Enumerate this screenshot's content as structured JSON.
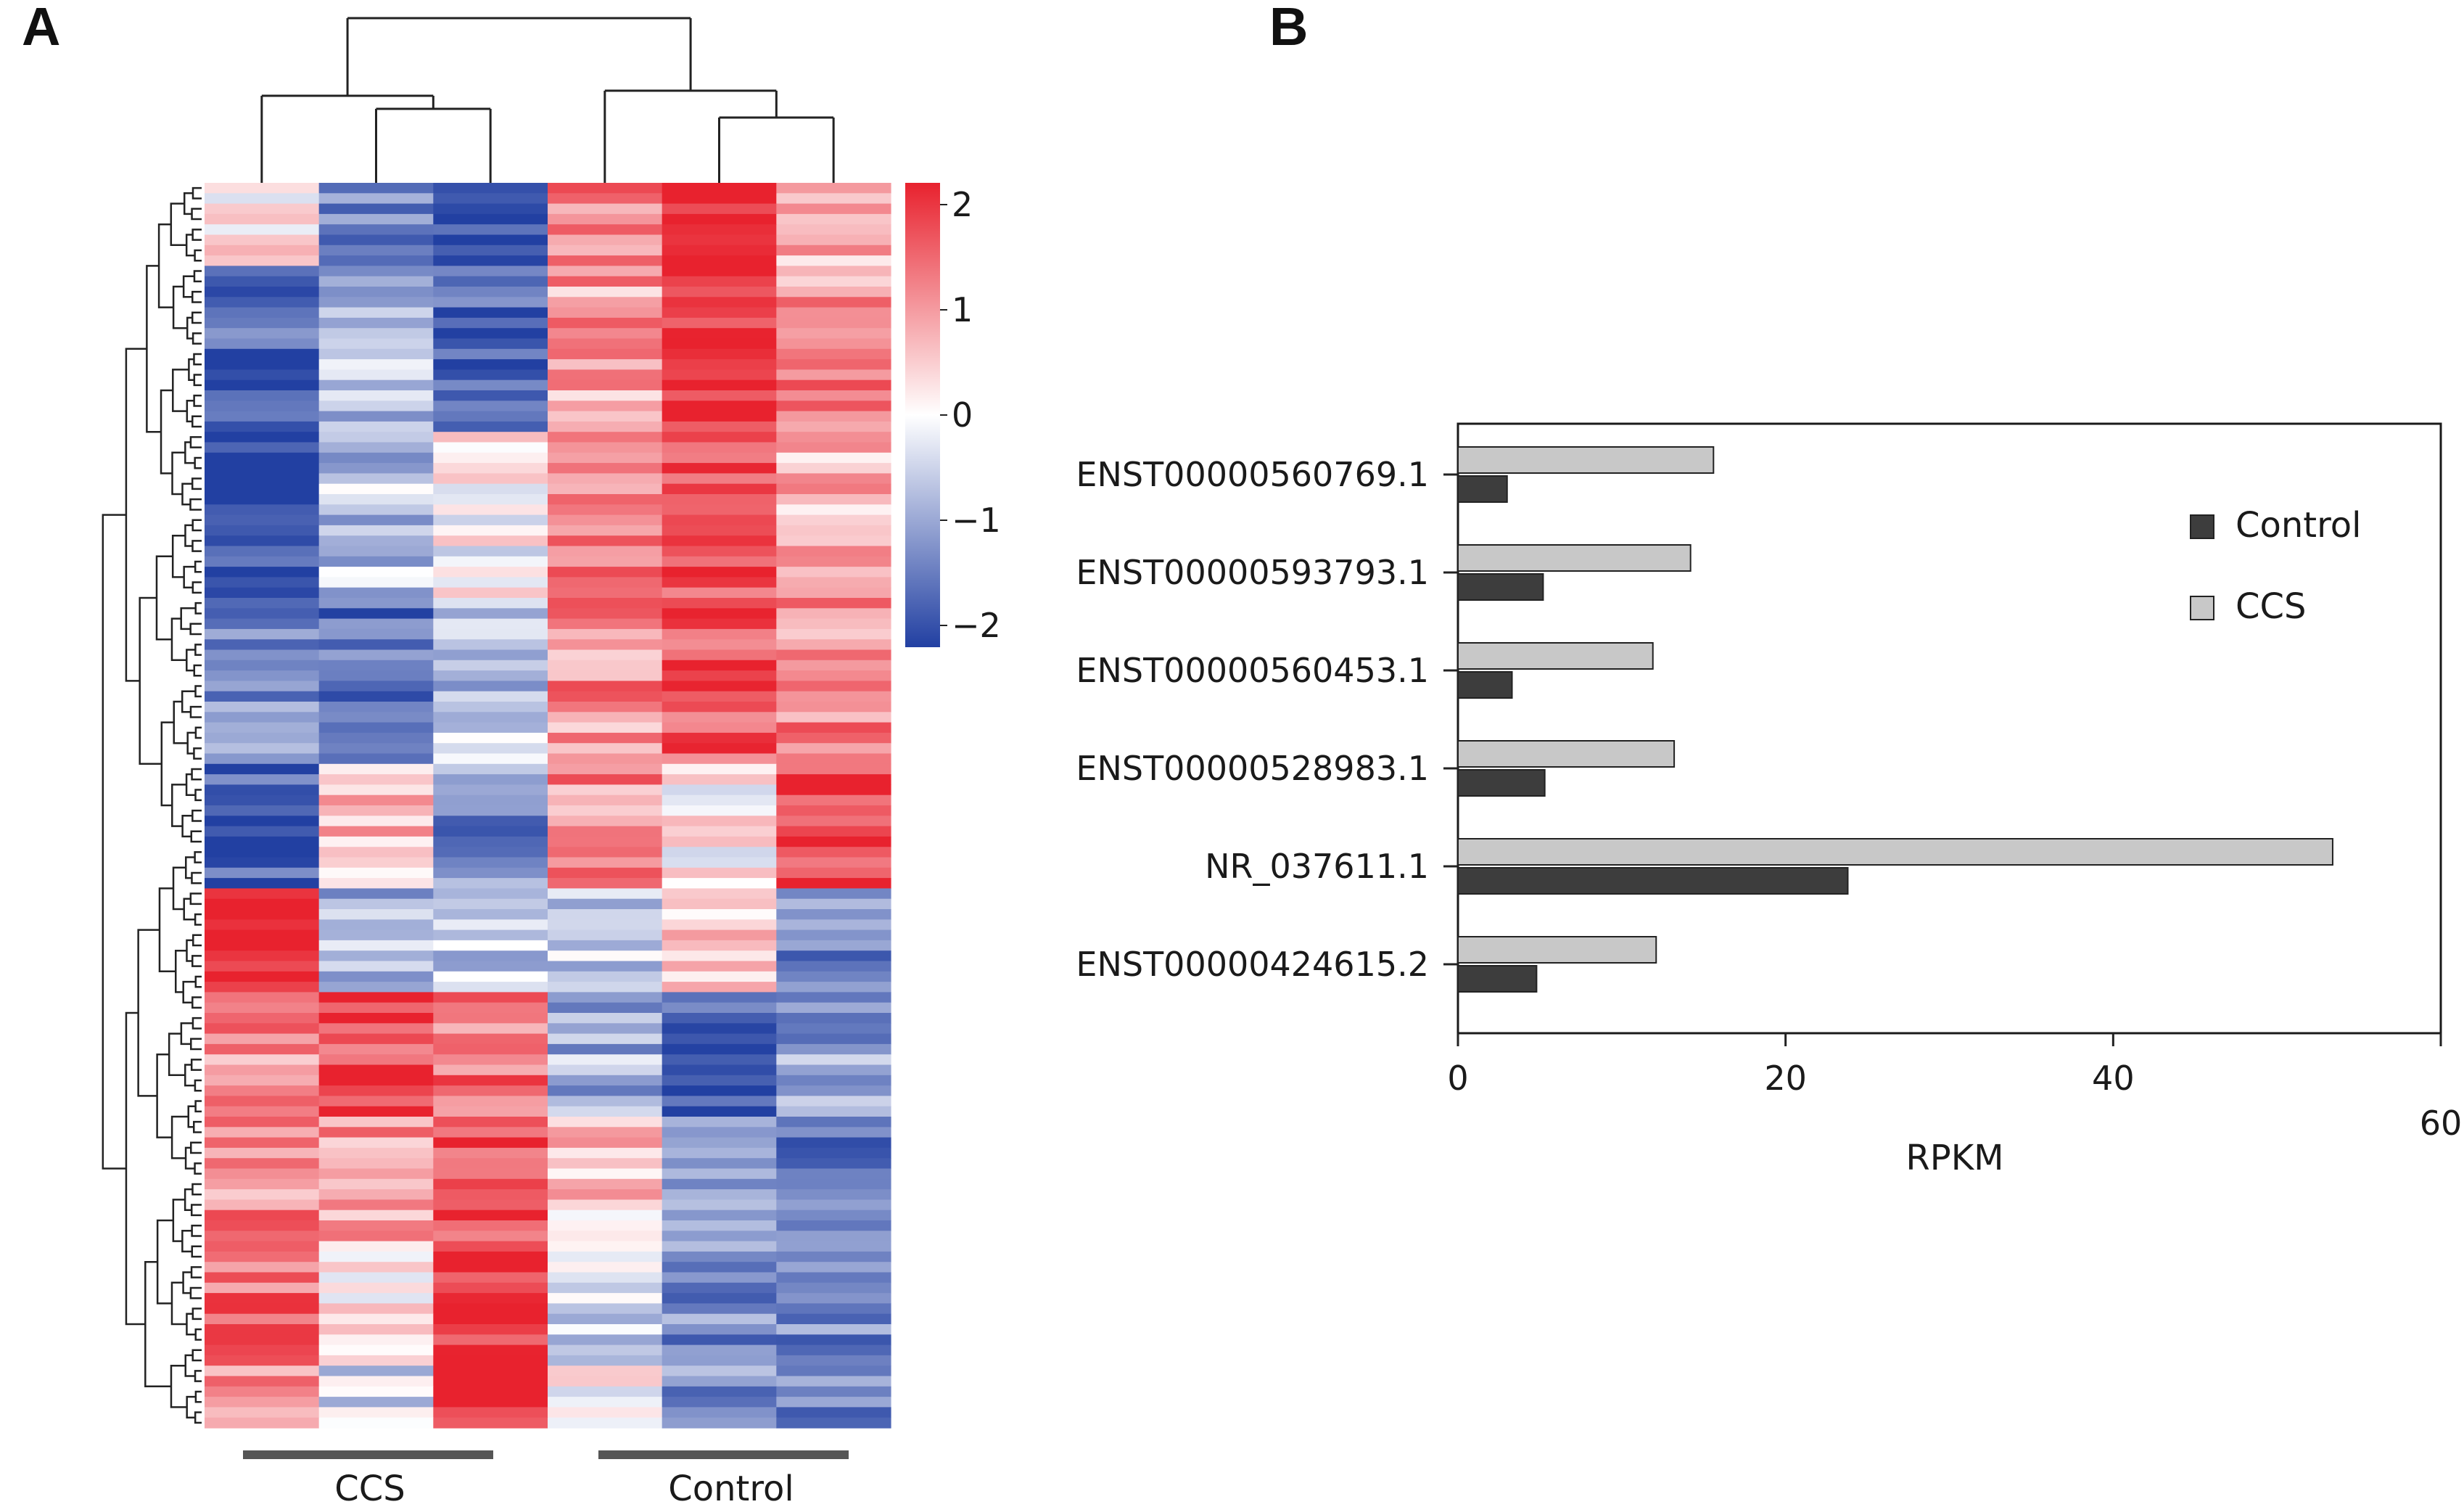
{
  "panels": {
    "a_label": "A",
    "b_label": "B"
  },
  "heatmap": {
    "group_labels": [
      "CCS",
      "Control"
    ],
    "colorbar": {
      "min": -2,
      "max": 2,
      "ticks": [
        "2",
        "1",
        "0",
        "−1",
        "−2"
      ],
      "colors": {
        "high": "#e8222e",
        "mid": "#ffffff",
        "low": "#2240a2"
      }
    },
    "columns": 6,
    "rows": 120
  },
  "chart_data": {
    "type": "bar",
    "orientation": "horizontal",
    "categories": [
      "ENST00000560769.1",
      "ENST00000593793.1",
      "ENST00000560453.1",
      "ENST00000528983.1",
      "NR_037611.1",
      "ENST00000424615.2"
    ],
    "series": [
      {
        "name": "Control",
        "values": [
          3.0,
          5.2,
          3.3,
          5.3,
          23.8,
          4.8
        ],
        "color": "#3d3d3d"
      },
      {
        "name": "CCS",
        "values": [
          15.6,
          14.2,
          11.9,
          13.2,
          53.4,
          12.1
        ],
        "color": "#c8c8c8"
      }
    ],
    "xlabel": "RPKM",
    "xlim": [
      0,
      60
    ],
    "xticks": [
      "0",
      "20",
      "40",
      "60"
    ],
    "legend_position": "top-right"
  }
}
